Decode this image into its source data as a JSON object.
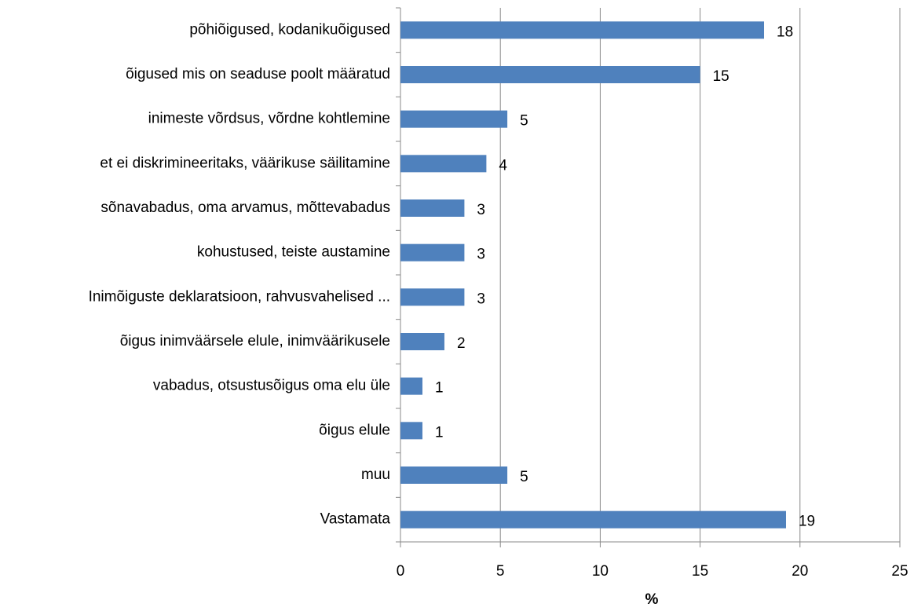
{
  "chart_data": {
    "type": "barh",
    "categories": [
      "põhiõigused, kodanikuõigused",
      "õigused mis on seaduse poolt määratud",
      "inimeste võrdsus, võrdne kohtlemine",
      "et ei diskrimineeritaks, väärikuse säilitamine",
      "sõnavabadus, oma arvamus,  mõttevabadus",
      "kohustused, teiste austamine",
      "Inimõiguste deklaratsioon, rahvusvahelised ...",
      "õigus inimväärsele elule, inimväärikusele",
      "vabadus, otsustusõigus  oma elu üle",
      "õigus elule",
      "muu",
      "Vastamata"
    ],
    "values": [
      18.2,
      15,
      5.35,
      4.3,
      3.2,
      3.2,
      3.2,
      2.2,
      1.1,
      1.1,
      5.35,
      19.3
    ],
    "value_labels": [
      "18",
      "15",
      "5",
      "4",
      "3",
      "3",
      "3",
      "2",
      "1",
      "1",
      "5",
      "19"
    ],
    "color": "#4f81bd",
    "xlabel": "%",
    "xlim": [
      0,
      25
    ],
    "xticks": [
      0,
      5,
      10,
      15,
      20,
      25
    ],
    "grid": true
  }
}
